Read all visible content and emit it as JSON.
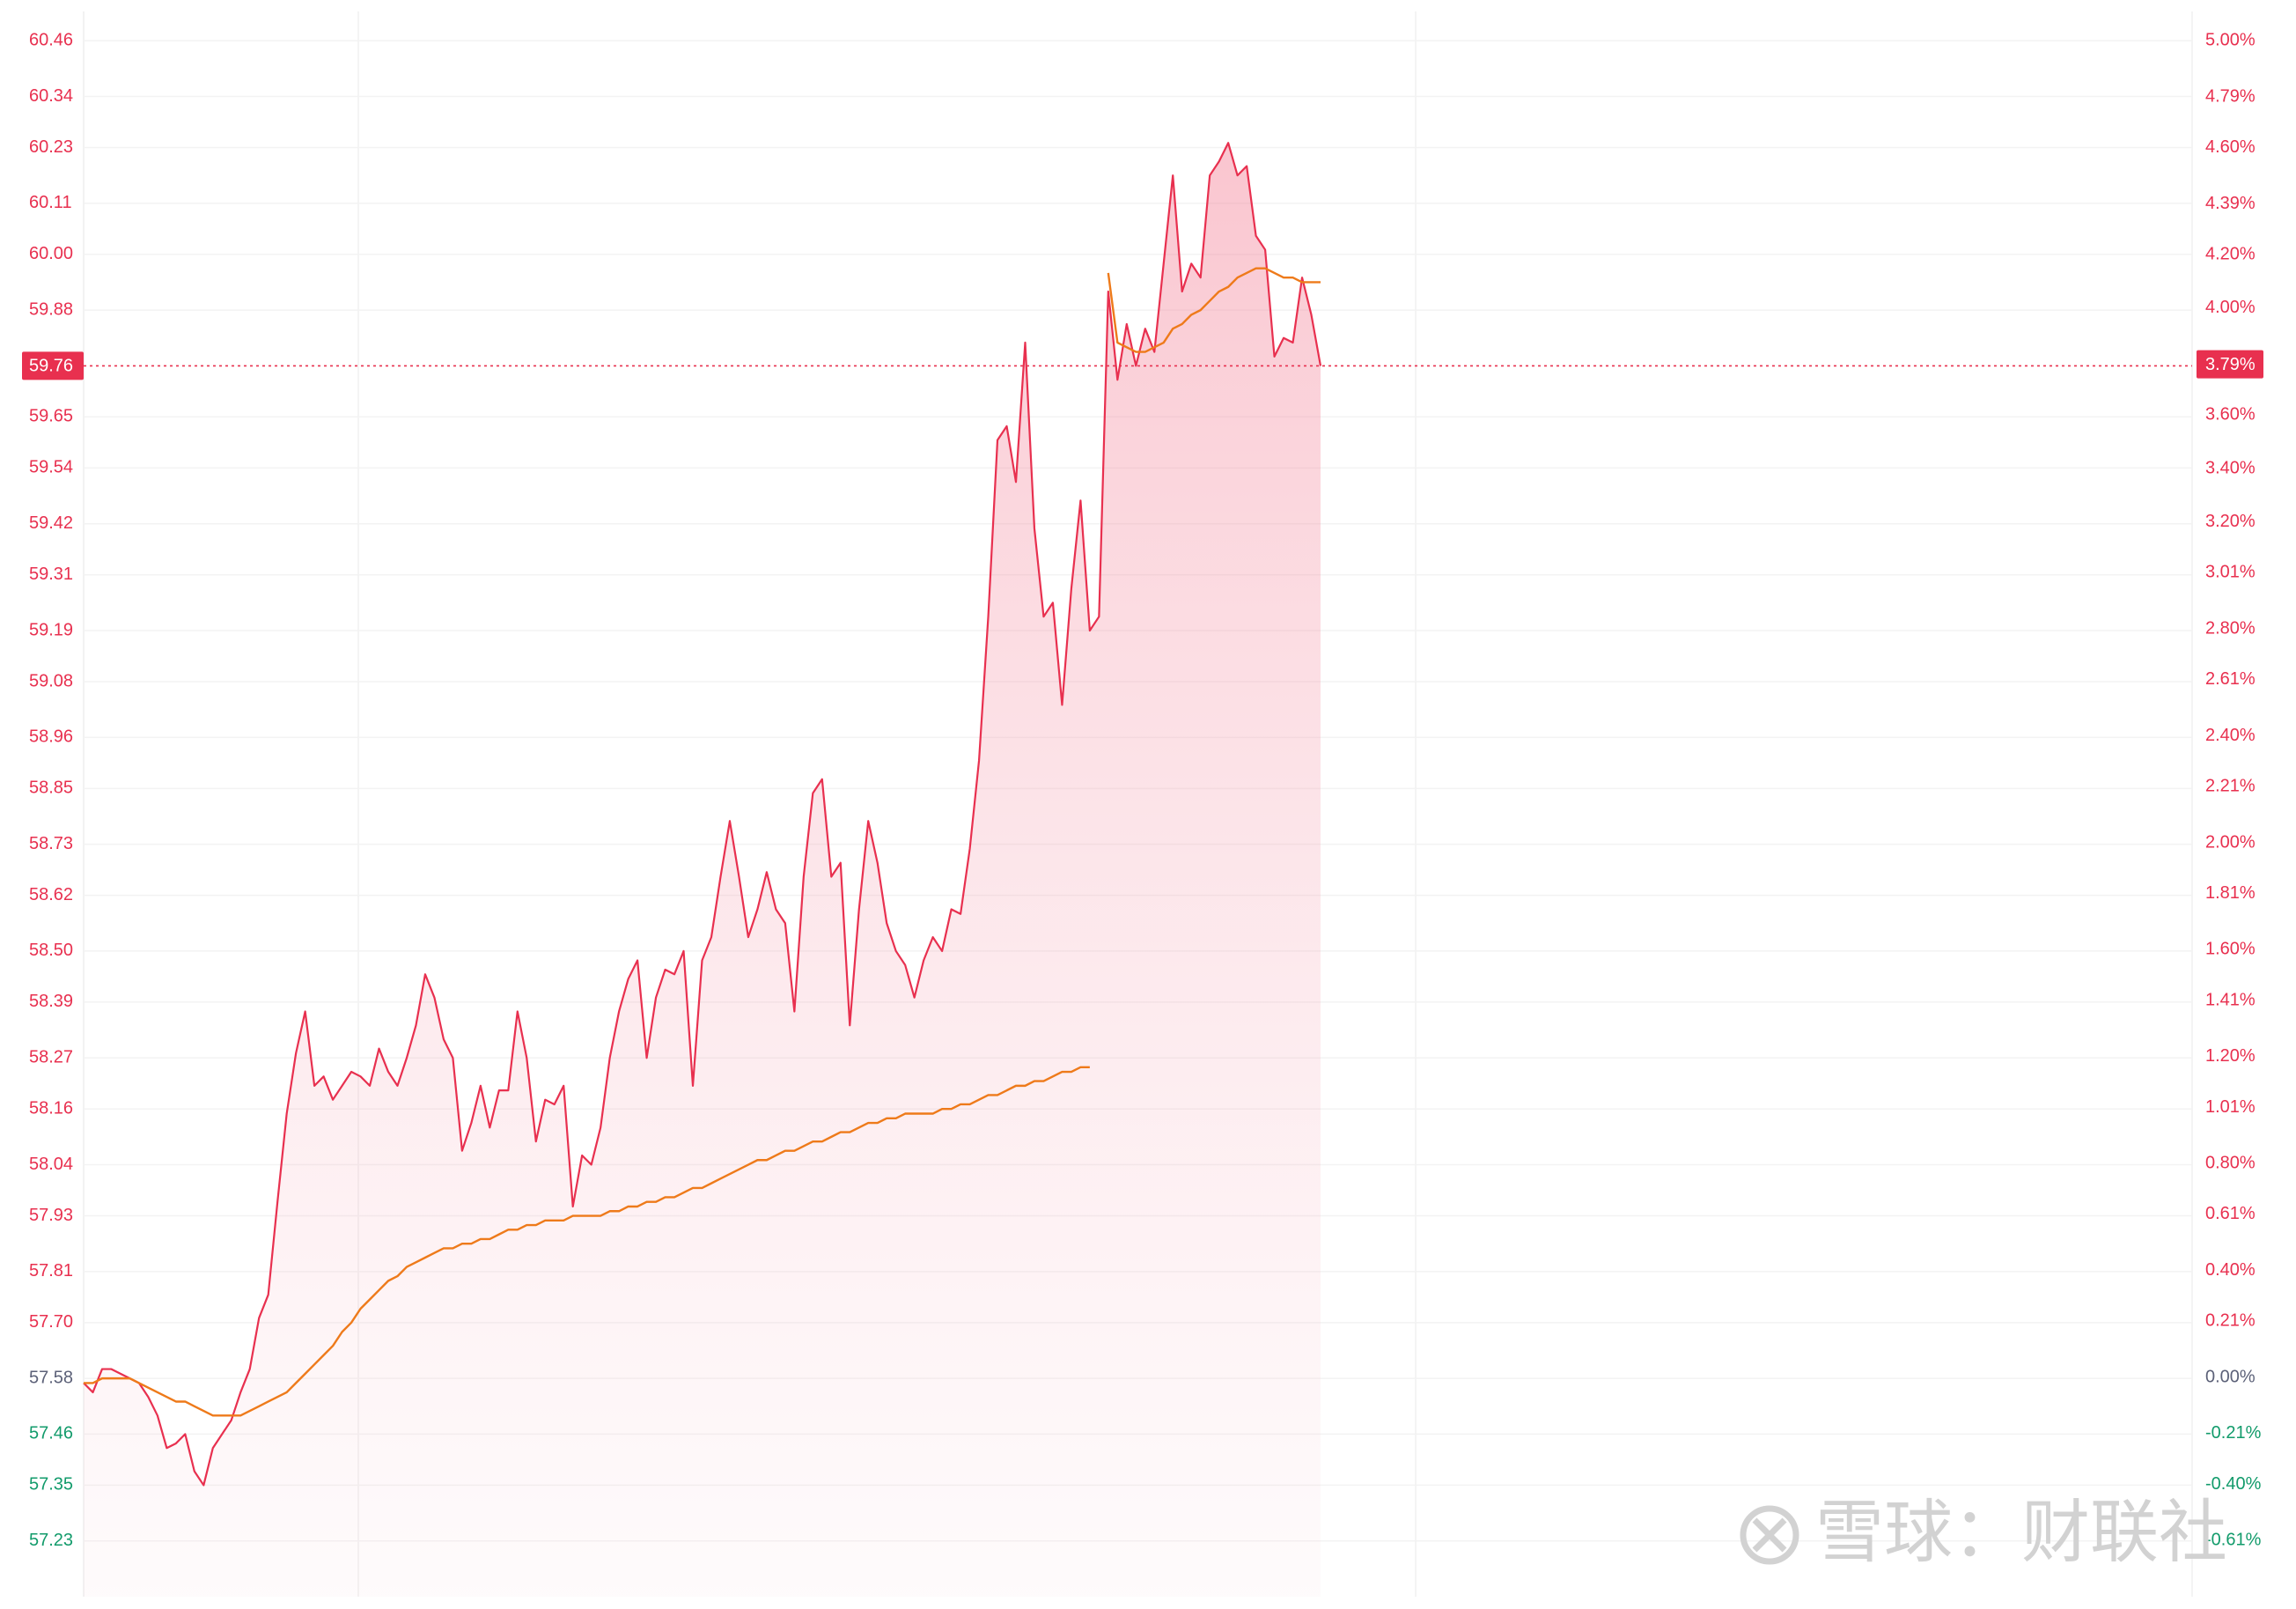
{
  "chart_data": {
    "type": "line",
    "ylim": [
      57.11,
      60.523
    ],
    "y2lim": [
      -0.82,
      5.11
    ],
    "yticks": [
      60.46,
      60.34,
      60.23,
      60.11,
      {
        "value": 60,
        "label": "60.00"
      },
      59.88,
      59.65,
      59.54,
      59.42,
      59.31,
      59.19,
      59.08,
      58.96,
      58.85,
      58.73,
      58.62,
      {
        "value": 58.5,
        "label": "58.50"
      },
      58.39,
      58.27,
      58.16,
      58.04,
      57.93,
      57.81,
      {
        "value": 57.7,
        "label": "57.70"
      },
      57.58,
      57.46,
      57.35,
      57.23
    ],
    "y2ticks": [
      {
        "value": 5,
        "label": "5.00%"
      },
      {
        "value": 4.79,
        "label": "4.79%"
      },
      {
        "value": 4.6,
        "label": "4.60%"
      },
      {
        "value": 4.39,
        "label": "4.39%"
      },
      {
        "value": 4.2,
        "label": "4.20%"
      },
      {
        "value": 4,
        "label": "4.00%"
      },
      {
        "value": 3.6,
        "label": "3.60%"
      },
      {
        "value": 3.4,
        "label": "3.40%"
      },
      {
        "value": 3.2,
        "label": "3.20%"
      },
      {
        "value": 3.01,
        "label": "3.01%"
      },
      {
        "value": 2.8,
        "label": "2.80%"
      },
      {
        "value": 2.61,
        "label": "2.61%"
      },
      {
        "value": 2.4,
        "label": "2.40%"
      },
      {
        "value": 2.21,
        "label": "2.21%"
      },
      {
        "value": 2,
        "label": "2.00%"
      },
      {
        "value": 1.81,
        "label": "1.81%"
      },
      {
        "value": 1.6,
        "label": "1.60%"
      },
      {
        "value": 1.41,
        "label": "1.41%"
      },
      {
        "value": 1.2,
        "label": "1.20%"
      },
      {
        "value": 1.01,
        "label": "1.01%"
      },
      {
        "value": 0.8,
        "label": "0.80%"
      },
      {
        "value": 0.61,
        "label": "0.61%"
      },
      {
        "value": 0.4,
        "label": "0.40%"
      },
      {
        "value": 0.21,
        "label": "0.21%"
      },
      {
        "value": 0,
        "label": "0.00%"
      },
      {
        "value": -0.21,
        "label": "-0.21%"
      },
      {
        "value": -0.4,
        "label": "-0.40%"
      },
      {
        "value": -0.61,
        "label": "-0.61%"
      }
    ],
    "up_color": "#e8304f",
    "flat_color": "#5c6178",
    "down_color": "#129b6b",
    "grid": true,
    "last_price": 59.76,
    "last_change": {
      "value": 3.79,
      "label": "3.79%"
    },
    "series": [
      {
        "color": "#e8304f",
        "fill": true,
        "values": [
          57.57,
          57.55,
          57.6,
          57.6,
          57.59,
          57.58,
          57.57,
          57.54,
          57.5,
          57.43,
          57.44,
          57.46,
          57.38,
          57.35,
          57.43,
          57.46,
          57.49,
          57.55,
          57.6,
          57.71,
          57.76,
          57.96,
          58.15,
          58.28,
          58.37,
          58.21,
          58.23,
          58.18,
          58.21,
          58.24,
          58.23,
          58.21,
          58.29,
          58.24,
          58.21,
          58.27,
          58.34,
          58.45,
          58.4,
          58.31,
          58.27,
          58.07,
          58.13,
          58.21,
          58.12,
          58.2,
          58.2,
          58.37,
          58.27,
          58.09,
          58.18,
          58.17,
          58.21,
          57.95,
          58.06,
          58.04,
          58.12,
          58.27,
          58.37,
          58.44,
          58.48,
          58.27,
          58.4,
          58.46,
          58.45,
          58.5,
          58.21,
          58.48,
          58.53,
          58.66,
          58.78,
          58.66,
          58.53,
          58.59,
          58.67,
          58.59,
          58.56,
          58.37,
          58.66,
          58.84,
          58.87,
          58.66,
          58.69,
          58.34,
          58.59,
          58.78,
          58.69,
          58.56,
          58.5,
          58.47,
          58.4,
          58.48,
          58.53,
          58.5,
          58.59,
          58.58,
          58.72,
          58.91,
          59.22,
          59.6,
          59.63,
          59.51,
          59.81,
          59.41,
          59.22,
          59.25,
          59.03,
          59.28,
          59.47,
          59.19,
          59.22,
          59.92,
          59.73,
          59.85,
          59.76,
          59.84,
          59.79,
          59.98,
          60.17,
          59.92,
          59.98,
          59.95,
          60.17,
          60.2,
          60.24,
          60.17,
          60.19,
          60.04,
          60.01,
          59.78,
          59.82,
          59.81,
          59.95,
          59.87,
          59.76
        ]
      },
      {
        "color": "#ee7a1a",
        "fill": false,
        "values": [
          57.57,
          57.57,
          57.58,
          57.58,
          57.58,
          57.58,
          57.57,
          57.56,
          57.55,
          57.54,
          57.53,
          57.53,
          57.52,
          57.51,
          57.5,
          57.5,
          57.5,
          57.5,
          57.51,
          57.52,
          57.53,
          57.54,
          57.55,
          57.57,
          57.59,
          57.61,
          57.63,
          57.65,
          57.68,
          57.7,
          57.73,
          57.75,
          57.77,
          57.79,
          57.8,
          57.82,
          57.83,
          57.84,
          57.85,
          57.86,
          57.86,
          57.87,
          57.87,
          57.88,
          57.88,
          57.89,
          57.9,
          57.9,
          57.91,
          57.91,
          57.92,
          57.92,
          57.92,
          57.93,
          57.93,
          57.93,
          57.93,
          57.94,
          57.94,
          57.95,
          57.95,
          57.96,
          57.96,
          57.97,
          57.97,
          57.98,
          57.99,
          57.99,
          58,
          58.01,
          58.02,
          58.03,
          58.04,
          58.05,
          58.05,
          58.06,
          58.07,
          58.07,
          58.08,
          58.09,
          58.09,
          58.1,
          58.11,
          58.11,
          58.12,
          58.13,
          58.13,
          58.14,
          58.14,
          58.15,
          58.15,
          58.15,
          58.15,
          58.16,
          58.16,
          58.17,
          58.17,
          58.18,
          58.19,
          58.19,
          58.2,
          58.21,
          58.21,
          58.22,
          58.22,
          58.23,
          58.24,
          58.24,
          58.25,
          58.25,
          null,
          59.96,
          59.81,
          59.8,
          59.79,
          59.79,
          59.8,
          59.81,
          59.84,
          59.85,
          59.87,
          59.88,
          59.9,
          59.92,
          59.93,
          59.95,
          59.96,
          59.97,
          59.97,
          59.96,
          59.95,
          59.95,
          59.94,
          59.94,
          59.94
        ]
      }
    ]
  },
  "watermark": "雪球：财联社"
}
